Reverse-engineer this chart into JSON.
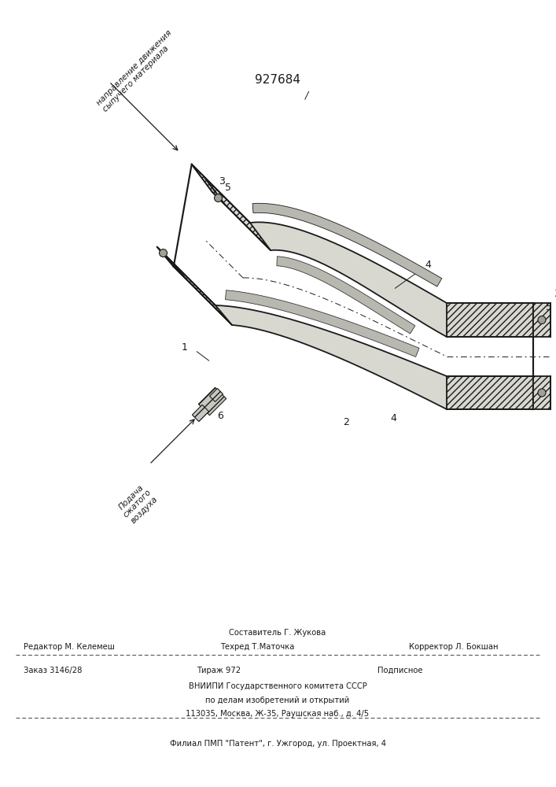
{
  "title": "927684",
  "title_fontsize": 11,
  "line_color": "#1a1a1a",
  "fill_hatch": "#d0cfc8",
  "filial_line": "Филиал ПМП \"Патент\", г. Ужгород, ул. Проектная, 4",
  "arrow_label_top_line1": "направление движения",
  "arrow_label_top_line2": "сыпучего материала",
  "arrow_label_bottom_line1": "Подача",
  "arrow_label_bottom_line2": "сжатого",
  "arrow_label_bottom_line3": "воздуха"
}
